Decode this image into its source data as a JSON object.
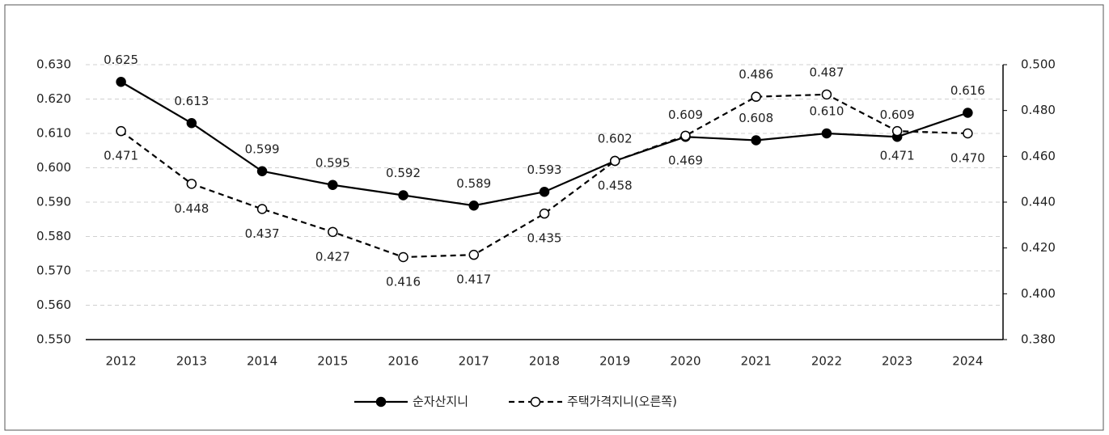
{
  "chart_data": {
    "type": "line",
    "categories": [
      "2012",
      "2013",
      "2014",
      "2015",
      "2016",
      "2017",
      "2018",
      "2019",
      "2020",
      "2021",
      "2022",
      "2023",
      "2024"
    ],
    "series": [
      {
        "name": "순자산지니",
        "color": "#000000",
        "marker": "filled",
        "dashed": false,
        "values": [
          0.625,
          0.613,
          0.599,
          0.595,
          0.592,
          0.589,
          0.593,
          0.602,
          0.609,
          0.608,
          0.61,
          0.609,
          0.616
        ],
        "value_labels": [
          "0.625",
          "0.613",
          "0.599",
          "0.595",
          "0.592",
          "0.589",
          "0.593",
          "0.602",
          "0.609",
          "0.608",
          "0.610",
          "0.609",
          "0.616"
        ]
      },
      {
        "name": "주택가격지니(오른쪽)",
        "color": "#000000",
        "marker": "open",
        "dashed": true,
        "axis": "y2",
        "values": [
          0.471,
          0.448,
          0.437,
          0.427,
          0.416,
          0.417,
          0.435,
          0.458,
          0.469,
          0.486,
          0.487,
          0.471,
          0.47
        ],
        "value_labels": [
          "0.471",
          "0.448",
          "0.437",
          "0.427",
          "0.416",
          "0.417",
          "0.435",
          "0.458",
          "0.469",
          "0.486",
          "0.487",
          "0.471",
          "0.470"
        ]
      }
    ],
    "ylim": [
      0.55,
      0.63
    ],
    "yticks": [
      {
        "value": 0.55,
        "label": "0.550"
      },
      {
        "value": 0.56,
        "label": "0.560"
      },
      {
        "value": 0.57,
        "label": "0.570"
      },
      {
        "value": 0.58,
        "label": "0.580"
      },
      {
        "value": 0.59,
        "label": "0.590"
      },
      {
        "value": 0.6,
        "label": "0.600"
      },
      {
        "value": 0.61,
        "label": "0.610"
      },
      {
        "value": 0.62,
        "label": "0.620"
      },
      {
        "value": 0.63,
        "label": "0.630"
      }
    ],
    "y2lim": [
      0.38,
      0.5
    ],
    "y2ticks": [
      {
        "value": 0.38,
        "label": "0.380"
      },
      {
        "value": 0.4,
        "label": "0.400"
      },
      {
        "value": 0.42,
        "label": "0.420"
      },
      {
        "value": 0.44,
        "label": "0.440"
      },
      {
        "value": 0.46,
        "label": "0.460"
      },
      {
        "value": 0.48,
        "label": "0.480"
      },
      {
        "value": 0.5,
        "label": "0.500"
      }
    ],
    "grid": true
  }
}
